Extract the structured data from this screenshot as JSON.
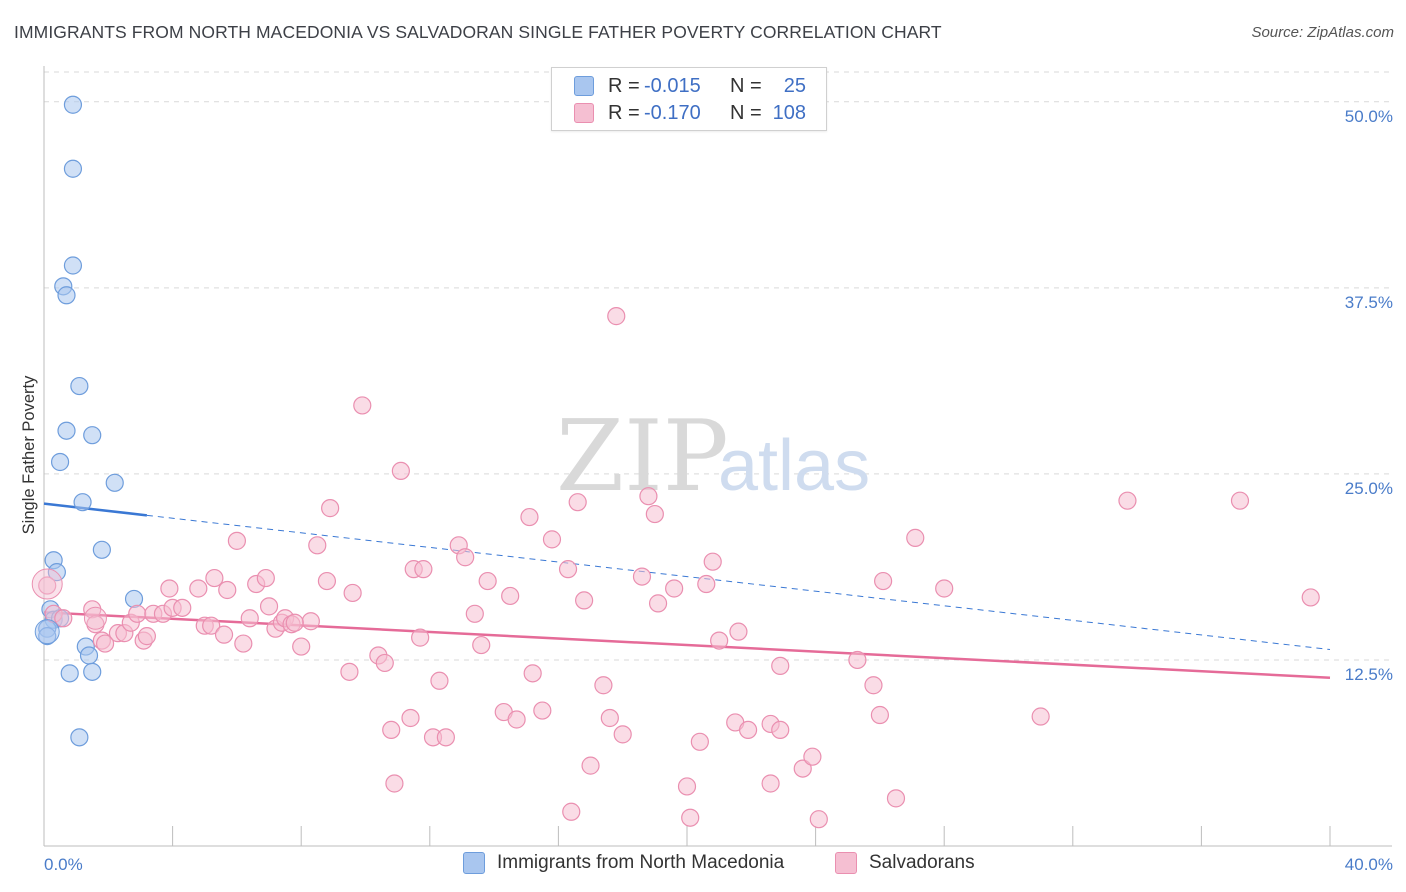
{
  "title": "IMMIGRANTS FROM NORTH MACEDONIA VS SALVADORAN SINGLE FATHER POVERTY CORRELATION CHART",
  "source": "Source: ZipAtlas.com",
  "watermark": {
    "zip": "ZIP",
    "atlas": "atlas"
  },
  "legend": {
    "rows": [
      {
        "r_label": "R =",
        "r_value": "-0.015",
        "n_label": "N =",
        "n_value": "25"
      },
      {
        "r_label": "R =",
        "r_value": "-0.170",
        "n_label": "N =",
        "n_value": "108"
      }
    ]
  },
  "bottom_legend": [
    "Immigrants from North Macedonia",
    "Salvadorans"
  ],
  "colors": {
    "blue_fill": "#a9c6ef",
    "blue_stroke": "#6e9ddc",
    "blue_line": "#3a78d4",
    "pink_fill": "#f5bfd2",
    "pink_stroke": "#ea8fb0",
    "pink_line": "#e56b98",
    "grid": "#d9d9d9",
    "tick_text": "#4a7cc9"
  },
  "chart_data": {
    "type": "scatter",
    "title": "IMMIGRANTS FROM NORTH MACEDONIA VS SALVADORAN SINGLE FATHER POVERTY CORRELATION CHART",
    "xlabel": "",
    "ylabel": "Single Father Poverty",
    "xlim": [
      0,
      40
    ],
    "ylim": [
      0,
      52
    ],
    "x_tick_labels": [
      "0.0%",
      "40.0%"
    ],
    "y_ticks": [
      12.5,
      25.0,
      37.5,
      50.0
    ],
    "y_tick_labels": [
      "12.5%",
      "25.0%",
      "37.5%",
      "50.0%"
    ],
    "series": [
      {
        "name": "Immigrants from North Macedonia",
        "color": "blue",
        "points": [
          [
            0.9,
            49.8
          ],
          [
            0.9,
            45.5
          ],
          [
            0.9,
            39.0
          ],
          [
            0.6,
            37.6
          ],
          [
            0.7,
            37.0
          ],
          [
            1.1,
            30.9
          ],
          [
            0.7,
            27.9
          ],
          [
            1.5,
            27.6
          ],
          [
            0.5,
            25.8
          ],
          [
            2.2,
            24.4
          ],
          [
            1.2,
            23.1
          ],
          [
            1.8,
            19.9
          ],
          [
            0.3,
            19.2
          ],
          [
            0.4,
            18.4
          ],
          [
            2.8,
            16.6
          ],
          [
            0.2,
            15.9
          ],
          [
            0.3,
            15.2
          ],
          [
            0.5,
            15.3
          ],
          [
            0.1,
            14.6
          ],
          [
            0.1,
            14.1
          ],
          [
            1.3,
            13.4
          ],
          [
            1.4,
            12.8
          ],
          [
            0.8,
            11.6
          ],
          [
            1.5,
            11.7
          ],
          [
            1.1,
            7.3
          ]
        ],
        "trend": {
          "x0": 0,
          "y0": 23.0,
          "x1": 40,
          "y1": 13.2,
          "solid_until_x": 3.2
        }
      },
      {
        "name": "Salvadorans",
        "color": "pink",
        "points": [
          [
            0.1,
            17.5
          ],
          [
            0.3,
            15.6
          ],
          [
            0.6,
            15.3
          ],
          [
            1.5,
            15.9
          ],
          [
            1.6,
            14.9
          ],
          [
            1.8,
            13.8
          ],
          [
            1.9,
            13.6
          ],
          [
            2.3,
            14.3
          ],
          [
            2.5,
            14.3
          ],
          [
            2.7,
            15.0
          ],
          [
            2.9,
            15.6
          ],
          [
            3.1,
            13.8
          ],
          [
            3.2,
            14.1
          ],
          [
            3.4,
            15.6
          ],
          [
            3.7,
            15.6
          ],
          [
            4.0,
            16.0
          ],
          [
            3.9,
            17.3
          ],
          [
            4.3,
            16.0
          ],
          [
            4.8,
            17.3
          ],
          [
            5.0,
            14.8
          ],
          [
            5.2,
            14.8
          ],
          [
            5.3,
            18.0
          ],
          [
            5.6,
            14.2
          ],
          [
            5.7,
            17.2
          ],
          [
            6.0,
            20.5
          ],
          [
            6.2,
            13.6
          ],
          [
            6.4,
            15.3
          ],
          [
            6.6,
            17.6
          ],
          [
            6.9,
            18.0
          ],
          [
            7.0,
            16.1
          ],
          [
            7.2,
            14.6
          ],
          [
            7.4,
            15.0
          ],
          [
            7.5,
            15.3
          ],
          [
            7.7,
            14.9
          ],
          [
            8.0,
            13.4
          ],
          [
            8.3,
            15.1
          ],
          [
            8.5,
            20.2
          ],
          [
            8.8,
            17.8
          ],
          [
            8.9,
            22.7
          ],
          [
            9.5,
            11.7
          ],
          [
            9.6,
            17.0
          ],
          [
            9.9,
            29.6
          ],
          [
            10.4,
            12.8
          ],
          [
            10.6,
            12.3
          ],
          [
            10.8,
            7.8
          ],
          [
            10.9,
            4.2
          ],
          [
            11.1,
            25.2
          ],
          [
            11.4,
            8.6
          ],
          [
            11.5,
            18.6
          ],
          [
            11.8,
            18.6
          ],
          [
            12.1,
            7.3
          ],
          [
            12.3,
            11.1
          ],
          [
            12.5,
            7.3
          ],
          [
            12.9,
            20.2
          ],
          [
            13.1,
            19.4
          ],
          [
            13.4,
            15.6
          ],
          [
            13.6,
            13.5
          ],
          [
            13.8,
            17.8
          ],
          [
            14.3,
            9.0
          ],
          [
            14.5,
            16.8
          ],
          [
            14.7,
            8.5
          ],
          [
            15.1,
            22.1
          ],
          [
            15.2,
            11.6
          ],
          [
            15.5,
            9.1
          ],
          [
            15.8,
            20.6
          ],
          [
            16.3,
            18.6
          ],
          [
            16.4,
            2.3
          ],
          [
            16.6,
            23.1
          ],
          [
            16.8,
            16.5
          ],
          [
            17.0,
            5.4
          ],
          [
            17.6,
            8.6
          ],
          [
            17.4,
            10.8
          ],
          [
            17.8,
            35.6
          ],
          [
            18.0,
            7.5
          ],
          [
            18.6,
            18.1
          ],
          [
            18.8,
            23.5
          ],
          [
            19.0,
            22.3
          ],
          [
            19.1,
            16.3
          ],
          [
            19.6,
            17.3
          ],
          [
            20.0,
            4.0
          ],
          [
            20.1,
            1.9
          ],
          [
            20.4,
            7.0
          ],
          [
            20.6,
            17.6
          ],
          [
            20.8,
            19.1
          ],
          [
            21.0,
            13.8
          ],
          [
            21.5,
            8.3
          ],
          [
            21.6,
            14.4
          ],
          [
            21.9,
            7.8
          ],
          [
            22.6,
            8.2
          ],
          [
            22.9,
            7.8
          ],
          [
            22.6,
            4.2
          ],
          [
            22.9,
            12.1
          ],
          [
            23.6,
            5.2
          ],
          [
            23.9,
            6.0
          ],
          [
            24.1,
            1.8
          ],
          [
            25.3,
            12.5
          ],
          [
            25.8,
            10.8
          ],
          [
            26.0,
            8.8
          ],
          [
            26.1,
            17.8
          ],
          [
            26.5,
            3.2
          ],
          [
            27.1,
            20.7
          ],
          [
            31.0,
            8.7
          ],
          [
            33.7,
            23.2
          ],
          [
            37.2,
            23.2
          ],
          [
            39.4,
            16.7
          ],
          [
            28.0,
            17.3
          ],
          [
            7.8,
            15.0
          ],
          [
            11.7,
            14.0
          ]
        ],
        "trend": {
          "x0": 0,
          "y0": 15.7,
          "x1": 40,
          "y1": 11.3
        }
      }
    ]
  }
}
